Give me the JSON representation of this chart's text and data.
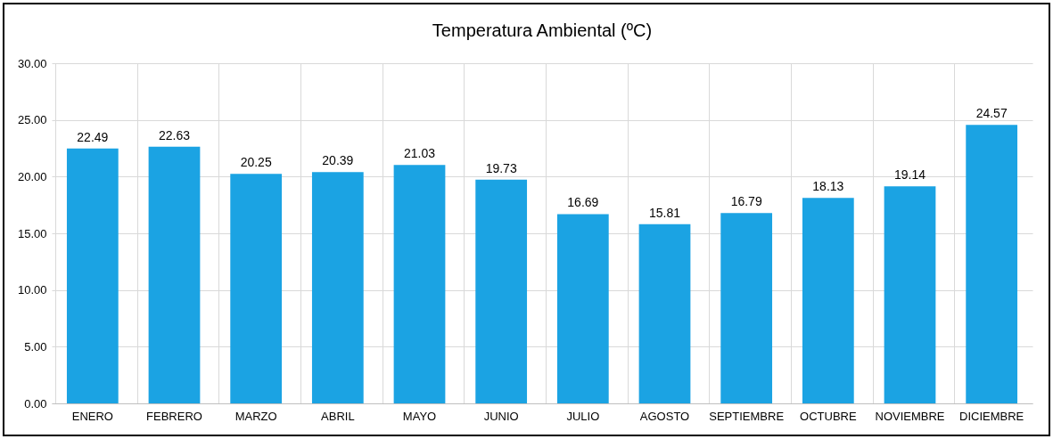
{
  "chart_data": {
    "type": "bar",
    "title": "Temperatura Ambiental (ºC)",
    "categories": [
      "ENERO",
      "FEBRERO",
      "MARZO",
      "ABRIL",
      "MAYO",
      "JUNIO",
      "JULIO",
      "AGOSTO",
      "SEPTIEMBRE",
      "OCTUBRE",
      "NOVIEMBRE",
      "DICIEMBRE"
    ],
    "values": [
      22.49,
      22.63,
      20.25,
      20.39,
      21.03,
      19.73,
      16.69,
      15.81,
      16.79,
      18.13,
      19.14,
      24.57
    ],
    "color": "#1ba3e3",
    "ylim": [
      0,
      30
    ],
    "yticks": [
      {
        "value": 0,
        "label": "0.00"
      },
      {
        "value": 5,
        "label": "5.00"
      },
      {
        "value": 10,
        "label": "10.00"
      },
      {
        "value": 15,
        "label": "15.00"
      },
      {
        "value": 20,
        "label": "20.00"
      },
      {
        "value": 25,
        "label": "25.00"
      },
      {
        "value": 30,
        "label": "30.00"
      }
    ],
    "grid": true,
    "data_labels": true
  }
}
